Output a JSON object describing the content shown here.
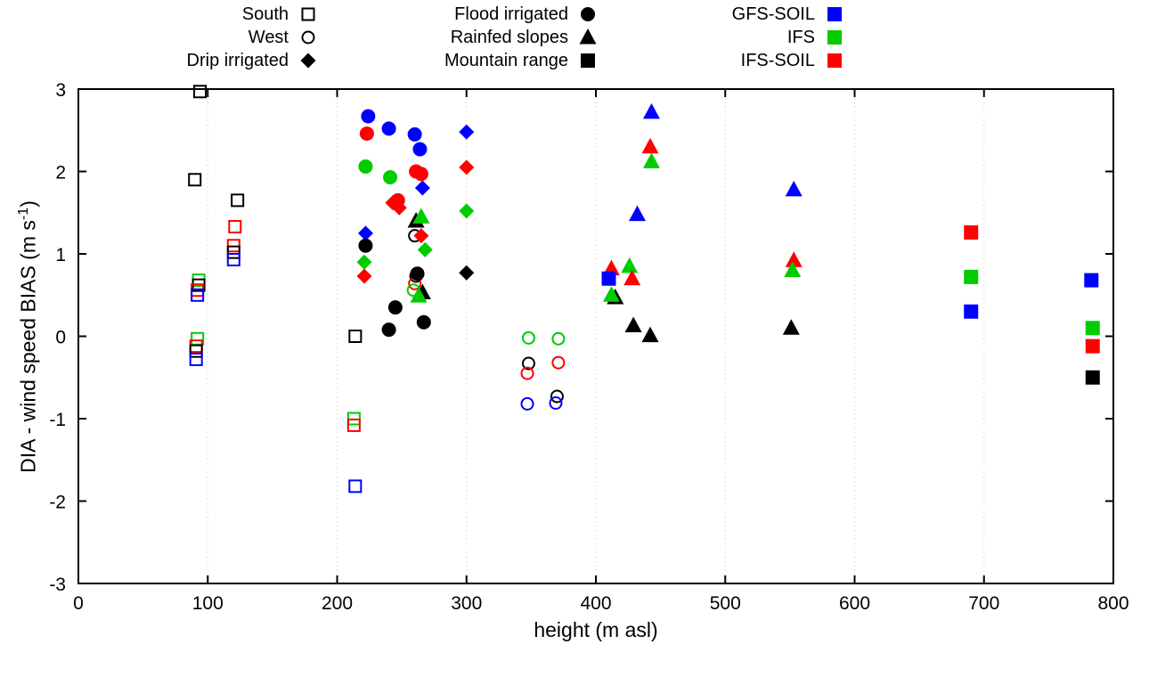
{
  "chart_data": {
    "type": "scatter",
    "xlabel": "height (m asl)",
    "ylabel_prefix": "DIA - wind speed BIAS (m s",
    "ylabel_sup": "-1",
    "ylabel_suffix": ")",
    "xlim": [
      0,
      800
    ],
    "ylim": [
      -3,
      3
    ],
    "xticks": [
      0,
      100,
      200,
      300,
      400,
      500,
      600,
      700,
      800
    ],
    "yticks": [
      -3,
      -2,
      -1,
      0,
      1,
      2,
      3
    ],
    "grid": {
      "vertical": true,
      "horizontal": false,
      "style": "dotted",
      "color": "#c8c8c8"
    },
    "legend": {
      "site_markers": [
        {
          "label": "South",
          "marker": "open-square",
          "color": "#000000"
        },
        {
          "label": "West",
          "marker": "open-circle",
          "color": "#000000"
        },
        {
          "label": "Drip irrigated",
          "marker": "filled-diamond",
          "color": "#000000"
        },
        {
          "label": "Flood irrigated",
          "marker": "filled-circle",
          "color": "#000000"
        },
        {
          "label": "Rainfed slopes",
          "marker": "filled-triangle",
          "color": "#000000"
        },
        {
          "label": "Mountain range",
          "marker": "filled-square",
          "color": "#000000"
        }
      ],
      "model_colors": [
        {
          "label": "GFS-SOIL",
          "marker": "filled-square",
          "color": "#0000ff"
        },
        {
          "label": "IFS",
          "marker": "filled-square",
          "color": "#00cc00"
        },
        {
          "label": "IFS-SOIL",
          "marker": "filled-square",
          "color": "#ff0000"
        }
      ]
    },
    "series": [
      {
        "name": "South",
        "marker": "open-square",
        "points": [
          {
            "x": 94,
            "y": 2.97,
            "c": "#000000"
          },
          {
            "x": 90,
            "y": 1.9,
            "c": "#000000"
          },
          {
            "x": 123,
            "y": 1.65,
            "c": "#000000"
          },
          {
            "x": 121,
            "y": 1.33,
            "c": "#ff0000"
          },
          {
            "x": 120,
            "y": 1.1,
            "c": "#ff0000"
          },
          {
            "x": 120,
            "y": 1.02,
            "c": "#000000"
          },
          {
            "x": 120,
            "y": 0.93,
            "c": "#0000ff"
          },
          {
            "x": 93,
            "y": 0.68,
            "c": "#00cc00"
          },
          {
            "x": 93,
            "y": 0.62,
            "c": "#000000"
          },
          {
            "x": 92,
            "y": 0.56,
            "c": "#ff0000"
          },
          {
            "x": 92,
            "y": 0.5,
            "c": "#0000ff"
          },
          {
            "x": 92,
            "y": -0.03,
            "c": "#00cc00"
          },
          {
            "x": 91,
            "y": -0.12,
            "c": "#ff0000"
          },
          {
            "x": 91,
            "y": -0.18,
            "c": "#000000"
          },
          {
            "x": 91,
            "y": -0.28,
            "c": "#0000ff"
          },
          {
            "x": 214,
            "y": 0.0,
            "c": "#000000"
          },
          {
            "x": 213,
            "y": -1.0,
            "c": "#00cc00"
          },
          {
            "x": 213,
            "y": -1.08,
            "c": "#ff0000"
          },
          {
            "x": 214,
            "y": -1.82,
            "c": "#0000ff"
          }
        ]
      },
      {
        "name": "West",
        "marker": "open-circle",
        "points": [
          {
            "x": 260,
            "y": 1.22,
            "c": "#000000"
          },
          {
            "x": 261,
            "y": 0.73,
            "c": "#000000"
          },
          {
            "x": 260,
            "y": 0.64,
            "c": "#ff0000"
          },
          {
            "x": 259,
            "y": 0.56,
            "c": "#00cc00"
          },
          {
            "x": 348,
            "y": -0.02,
            "c": "#00cc00"
          },
          {
            "x": 348,
            "y": -0.33,
            "c": "#000000"
          },
          {
            "x": 347,
            "y": -0.45,
            "c": "#ff0000"
          },
          {
            "x": 347,
            "y": -0.82,
            "c": "#0000ff"
          },
          {
            "x": 371,
            "y": -0.03,
            "c": "#00cc00"
          },
          {
            "x": 371,
            "y": -0.32,
            "c": "#ff0000"
          },
          {
            "x": 370,
            "y": -0.73,
            "c": "#000000"
          },
          {
            "x": 369,
            "y": -0.81,
            "c": "#0000ff"
          }
        ]
      },
      {
        "name": "Drip irrigated",
        "marker": "filled-diamond",
        "points": [
          {
            "x": 222,
            "y": 1.25,
            "c": "#0000ff"
          },
          {
            "x": 221,
            "y": 0.9,
            "c": "#00cc00"
          },
          {
            "x": 221,
            "y": 0.73,
            "c": "#ff0000"
          },
          {
            "x": 243,
            "y": 1.62,
            "c": "#ff0000"
          },
          {
            "x": 248,
            "y": 1.56,
            "c": "#ff0000"
          },
          {
            "x": 266,
            "y": 1.8,
            "c": "#0000ff"
          },
          {
            "x": 265,
            "y": 1.22,
            "c": "#ff0000"
          },
          {
            "x": 268,
            "y": 1.05,
            "c": "#00cc00"
          },
          {
            "x": 300,
            "y": 2.48,
            "c": "#0000ff"
          },
          {
            "x": 300,
            "y": 2.05,
            "c": "#ff0000"
          },
          {
            "x": 300,
            "y": 1.52,
            "c": "#00cc00"
          },
          {
            "x": 300,
            "y": 0.77,
            "c": "#000000"
          }
        ]
      },
      {
        "name": "Flood irrigated",
        "marker": "filled-circle",
        "points": [
          {
            "x": 224,
            "y": 2.67,
            "c": "#0000ff"
          },
          {
            "x": 223,
            "y": 2.46,
            "c": "#ff0000"
          },
          {
            "x": 222,
            "y": 2.06,
            "c": "#00cc00"
          },
          {
            "x": 240,
            "y": 2.52,
            "c": "#0000ff"
          },
          {
            "x": 241,
            "y": 1.93,
            "c": "#00cc00"
          },
          {
            "x": 247,
            "y": 1.65,
            "c": "#ff0000"
          },
          {
            "x": 260,
            "y": 2.45,
            "c": "#0000ff"
          },
          {
            "x": 264,
            "y": 2.27,
            "c": "#0000ff"
          },
          {
            "x": 261,
            "y": 2.0,
            "c": "#ff0000"
          },
          {
            "x": 265,
            "y": 1.97,
            "c": "#ff0000"
          },
          {
            "x": 222,
            "y": 1.1,
            "c": "#000000"
          },
          {
            "x": 245,
            "y": 0.35,
            "c": "#000000"
          },
          {
            "x": 240,
            "y": 0.08,
            "c": "#000000"
          },
          {
            "x": 267,
            "y": 0.17,
            "c": "#000000"
          },
          {
            "x": 262,
            "y": 0.76,
            "c": "#000000"
          }
        ]
      },
      {
        "name": "Rainfed slopes",
        "marker": "filled-triangle",
        "points": [
          {
            "x": 443,
            "y": 2.72,
            "c": "#0000ff"
          },
          {
            "x": 442,
            "y": 2.3,
            "c": "#ff0000"
          },
          {
            "x": 443,
            "y": 2.12,
            "c": "#00cc00"
          },
          {
            "x": 432,
            "y": 1.48,
            "c": "#0000ff"
          },
          {
            "x": 261,
            "y": 1.4,
            "c": "#000000"
          },
          {
            "x": 265,
            "y": 1.45,
            "c": "#00cc00"
          },
          {
            "x": 266,
            "y": 0.53,
            "c": "#000000"
          },
          {
            "x": 263,
            "y": 0.49,
            "c": "#00cc00"
          },
          {
            "x": 412,
            "y": 0.82,
            "c": "#ff0000"
          },
          {
            "x": 426,
            "y": 0.85,
            "c": "#00cc00"
          },
          {
            "x": 428,
            "y": 0.7,
            "c": "#ff0000"
          },
          {
            "x": 415,
            "y": 0.47,
            "c": "#000000"
          },
          {
            "x": 412,
            "y": 0.5,
            "c": "#00cc00"
          },
          {
            "x": 429,
            "y": 0.13,
            "c": "#000000"
          },
          {
            "x": 442,
            "y": 0.01,
            "c": "#000000"
          },
          {
            "x": 553,
            "y": 1.78,
            "c": "#0000ff"
          },
          {
            "x": 553,
            "y": 0.92,
            "c": "#ff0000"
          },
          {
            "x": 552,
            "y": 0.8,
            "c": "#00cc00"
          },
          {
            "x": 551,
            "y": 0.1,
            "c": "#000000"
          }
        ]
      },
      {
        "name": "Mountain range",
        "marker": "filled-square",
        "points": [
          {
            "x": 410,
            "y": 0.7,
            "c": "#0000ff"
          },
          {
            "x": 690,
            "y": 1.26,
            "c": "#ff0000"
          },
          {
            "x": 690,
            "y": 0.72,
            "c": "#00cc00"
          },
          {
            "x": 690,
            "y": 0.3,
            "c": "#0000ff"
          },
          {
            "x": 783,
            "y": 0.68,
            "c": "#0000ff"
          },
          {
            "x": 784,
            "y": 0.1,
            "c": "#00cc00"
          },
          {
            "x": 784,
            "y": -0.12,
            "c": "#ff0000"
          },
          {
            "x": 784,
            "y": -0.5,
            "c": "#000000"
          }
        ]
      }
    ]
  }
}
